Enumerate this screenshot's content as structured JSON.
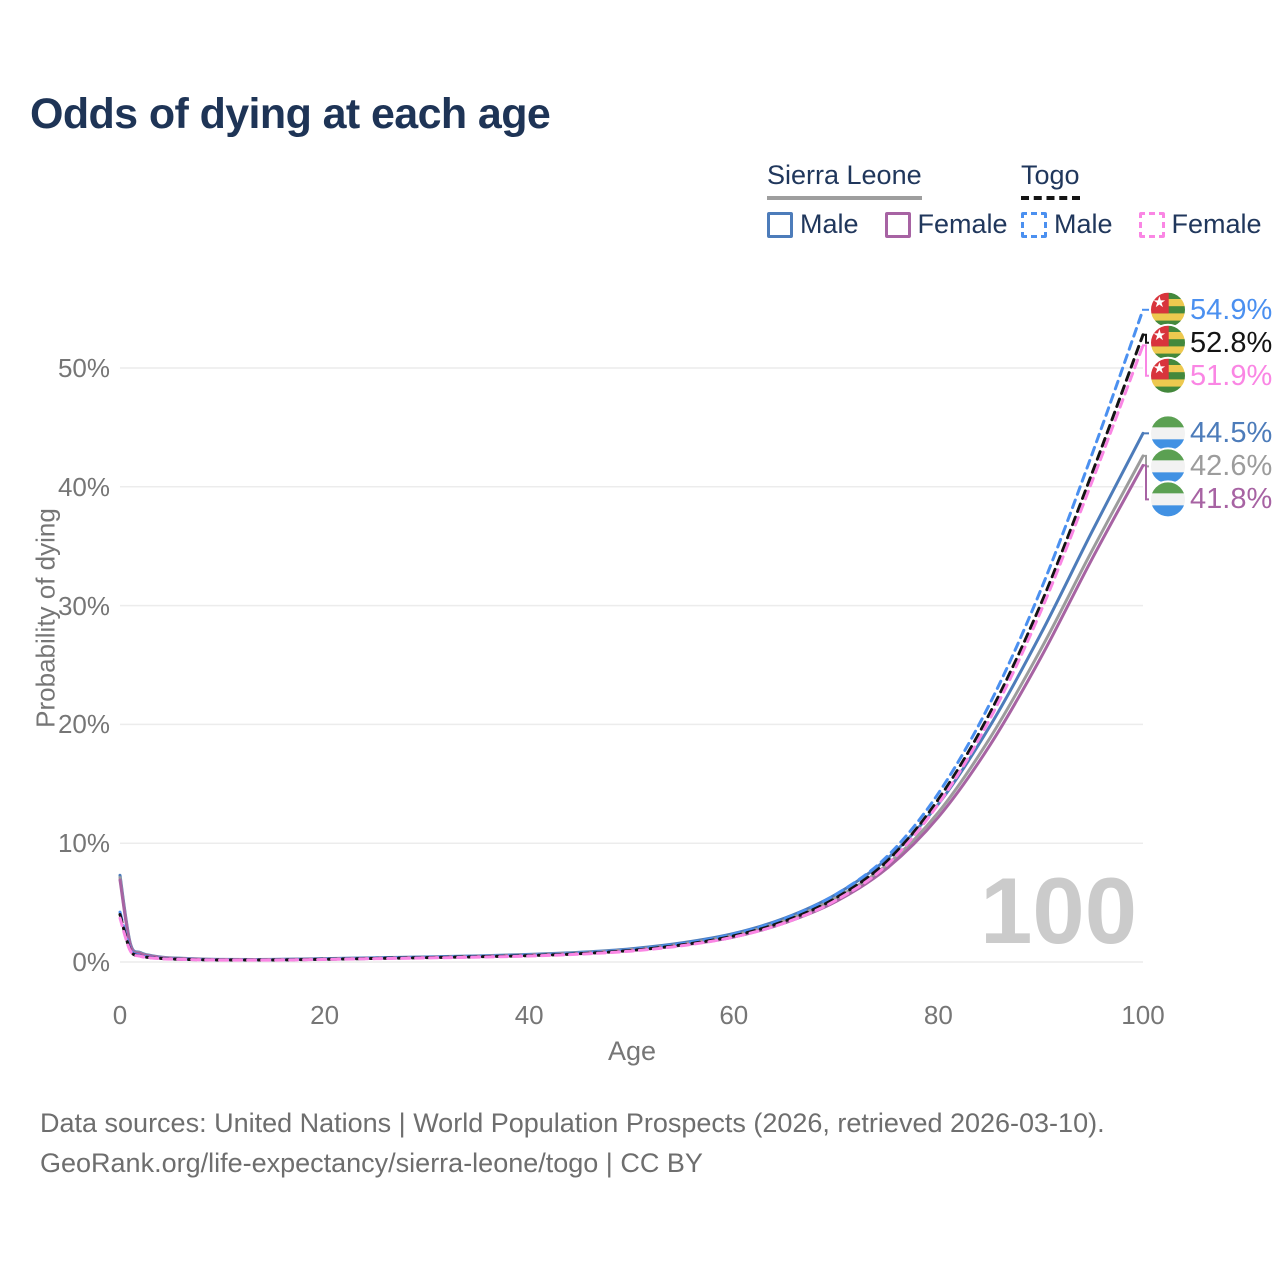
{
  "title": "Odds of dying at each age",
  "legend": {
    "groups": [
      {
        "name": "Sierra Leone",
        "line_style": "solid",
        "underline_color": "#9e9e9e",
        "items": [
          {
            "label": "Male",
            "color": "#4d7cba"
          },
          {
            "label": "Female",
            "color": "#a763a3"
          }
        ]
      },
      {
        "name": "Togo",
        "line_style": "dashed",
        "underline_color": "#141414",
        "items": [
          {
            "label": "Male",
            "color": "#4b90f0"
          },
          {
            "label": "Female",
            "color": "#fa86e4"
          }
        ]
      }
    ]
  },
  "watermark_age": "100",
  "footer": {
    "line1": "Data sources: United Nations | World Population Prospects (2026, retrieved 2026-03-10).",
    "line2": "GeoRank.org/life-expectancy/sierra-leone/togo | CC BY"
  },
  "chart_data": {
    "type": "line",
    "title": "Odds of dying at each age",
    "xlabel": "Age",
    "ylabel": "Probability of dying",
    "xlim": [
      0,
      100
    ],
    "ylim": [
      0,
      57
    ],
    "xticks": [
      0,
      20,
      40,
      60,
      80,
      100
    ],
    "ytick_labels": [
      "0%",
      "10%",
      "20%",
      "30%",
      "40%",
      "50%"
    ],
    "ytick_values": [
      0,
      10,
      20,
      30,
      40,
      50
    ],
    "grid": "horizontal",
    "x": [
      0,
      1,
      2,
      3,
      4,
      5,
      8,
      10,
      15,
      20,
      25,
      30,
      35,
      40,
      45,
      50,
      55,
      60,
      65,
      70,
      75,
      80,
      85,
      90,
      95,
      100
    ],
    "series": [
      {
        "name": "Sierra Leone Male",
        "country": "Sierra Leone",
        "sex": "Male",
        "color": "#4d7cba",
        "dash": false,
        "flag": "sierra-leone",
        "end_label": "44.5%",
        "values": [
          7.3,
          1.6,
          0.8,
          0.55,
          0.42,
          0.35,
          0.25,
          0.22,
          0.22,
          0.28,
          0.36,
          0.43,
          0.52,
          0.64,
          0.82,
          1.12,
          1.62,
          2.4,
          3.7,
          5.7,
          8.7,
          13.3,
          19.8,
          27.6,
          36.2,
          44.5
        ]
      },
      {
        "name": "Sierra Leone (all)",
        "country": "Sierra Leone",
        "sex": "All",
        "color": "#9c9c9c",
        "dash": false,
        "flag": "sierra-leone",
        "end_label": "42.6%",
        "values": [
          7.1,
          1.5,
          0.75,
          0.52,
          0.4,
          0.33,
          0.23,
          0.21,
          0.2,
          0.26,
          0.33,
          0.4,
          0.48,
          0.6,
          0.77,
          1.05,
          1.52,
          2.25,
          3.5,
          5.4,
          8.2,
          12.6,
          18.8,
          26.3,
          34.6,
          42.6
        ]
      },
      {
        "name": "Sierra Leone Female",
        "country": "Sierra Leone",
        "sex": "Female",
        "color": "#a763a3",
        "dash": false,
        "flag": "sierra-leone",
        "end_label": "41.8%",
        "values": [
          6.9,
          1.45,
          0.7,
          0.5,
          0.38,
          0.31,
          0.22,
          0.2,
          0.19,
          0.24,
          0.31,
          0.38,
          0.45,
          0.56,
          0.72,
          0.98,
          1.42,
          2.1,
          3.3,
          5.1,
          7.9,
          12.2,
          18.2,
          25.6,
          33.9,
          41.8
        ]
      },
      {
        "name": "Togo Male",
        "country": "Togo",
        "sex": "Male",
        "color": "#4b90f0",
        "dash": true,
        "flag": "togo",
        "end_label": "54.9%",
        "values": [
          4.2,
          1.1,
          0.55,
          0.4,
          0.32,
          0.27,
          0.2,
          0.18,
          0.18,
          0.25,
          0.33,
          0.4,
          0.48,
          0.58,
          0.75,
          1.05,
          1.55,
          2.35,
          3.65,
          5.7,
          8.9,
          14.2,
          21.7,
          31.3,
          42.7,
          54.9
        ]
      },
      {
        "name": "Togo (all)",
        "country": "Togo",
        "sex": "All",
        "color": "#141414",
        "dash": true,
        "flag": "togo",
        "end_label": "52.8%",
        "values": [
          4.0,
          1.0,
          0.5,
          0.37,
          0.3,
          0.25,
          0.19,
          0.17,
          0.17,
          0.23,
          0.3,
          0.37,
          0.44,
          0.54,
          0.7,
          0.98,
          1.45,
          2.2,
          3.45,
          5.4,
          8.5,
          13.7,
          20.9,
          30.1,
          41.1,
          52.8
        ]
      },
      {
        "name": "Togo Female",
        "country": "Togo",
        "sex": "Female",
        "color": "#fa86e4",
        "dash": true,
        "flag": "togo",
        "end_label": "51.9%",
        "values": [
          3.7,
          0.95,
          0.48,
          0.35,
          0.28,
          0.24,
          0.18,
          0.16,
          0.16,
          0.21,
          0.28,
          0.34,
          0.41,
          0.5,
          0.66,
          0.92,
          1.38,
          2.1,
          3.3,
          5.2,
          8.2,
          13.3,
          20.4,
          29.5,
          40.4,
          51.9
        ]
      }
    ]
  }
}
